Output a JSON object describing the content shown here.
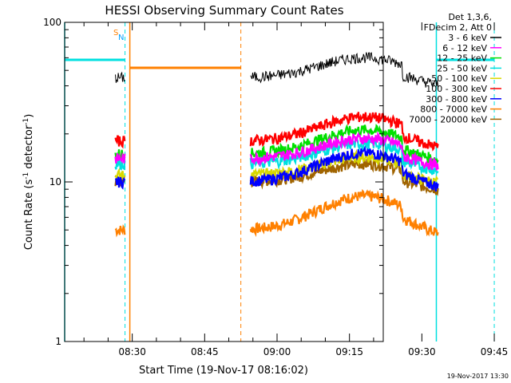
{
  "chart_data": {
    "type": "line",
    "title": "HESSI Observing Summary Count Rates",
    "xlabel": "Start Time (19-Nov-17 08:16:02)",
    "ylabel_main": "Count Rate (s",
    "ylabel_sup1": "-1",
    "ylabel_mid": " detector",
    "ylabel_sup2": "-1",
    "ylabel_end": ")",
    "yscale": "log",
    "ylim": [
      1,
      100
    ],
    "y_ticks": [
      {
        "v": 1,
        "label": "1"
      },
      {
        "v": 10,
        "label": "10"
      },
      {
        "v": 100,
        "label": "100"
      }
    ],
    "xlim_min": [
      16,
      82
    ],
    "x_ticks": [
      {
        "m": 30,
        "label": "08:30"
      },
      {
        "m": 45,
        "label": "08:45"
      },
      {
        "m": 60,
        "label": "09:00"
      },
      {
        "m": 75,
        "label": "09:15"
      },
      {
        "m": 90,
        "label": "09:30"
      },
      {
        "m": 105,
        "label": "09:45"
      }
    ],
    "legend_header": [
      "Det 1,3,6,",
      "FDecim 2, Att 0"
    ],
    "legend_position": "top-right outside plot",
    "series": [
      {
        "name": "3 - 6 keV",
        "color": "#000000",
        "a": 45,
        "b": 48
      },
      {
        "name": "6 - 12 keV",
        "color": "#ff00ff",
        "a": 14,
        "b": 15
      },
      {
        "name": "12 - 25 keV",
        "color": "#00e000",
        "a": 15,
        "b": 18
      },
      {
        "name": "25 - 50 keV",
        "color": "#00e0e0",
        "a": 13,
        "b": 14
      },
      {
        "name": "50 - 100 keV",
        "color": "#d8d800",
        "a": 11,
        "b": 11
      },
      {
        "name": "100 - 300 keV",
        "color": "#ff0000",
        "a": 18,
        "b": 22
      },
      {
        "name": "300 - 800 keV",
        "color": "#0000ff",
        "a": 10,
        "b": 14
      },
      {
        "name": "800 - 7000 keV",
        "color": "#ff8000",
        "a": 5,
        "b": 8
      },
      {
        "name": "7000 - 20000 keV",
        "color": "#a06400",
        "a": 10,
        "b": 10
      }
    ],
    "segments": [
      [
        26.5,
        28.5
      ],
      [
        54.5,
        93.5
      ]
    ],
    "markers": {
      "saa_band_y": 75,
      "saa_band_color": "#00e0e0",
      "night_band_y": 85,
      "night_band_color": "#ff8000",
      "saa_label": "S",
      "night_label": "N",
      "cyan_solid": [
        16,
        93
      ],
      "cyan_dashed": [
        28.5,
        105
      ],
      "orange_solid": [
        29.5
      ],
      "orange_dashed": [
        52.5
      ]
    }
  },
  "footer_stamp": "19-Nov-2017 13:30"
}
